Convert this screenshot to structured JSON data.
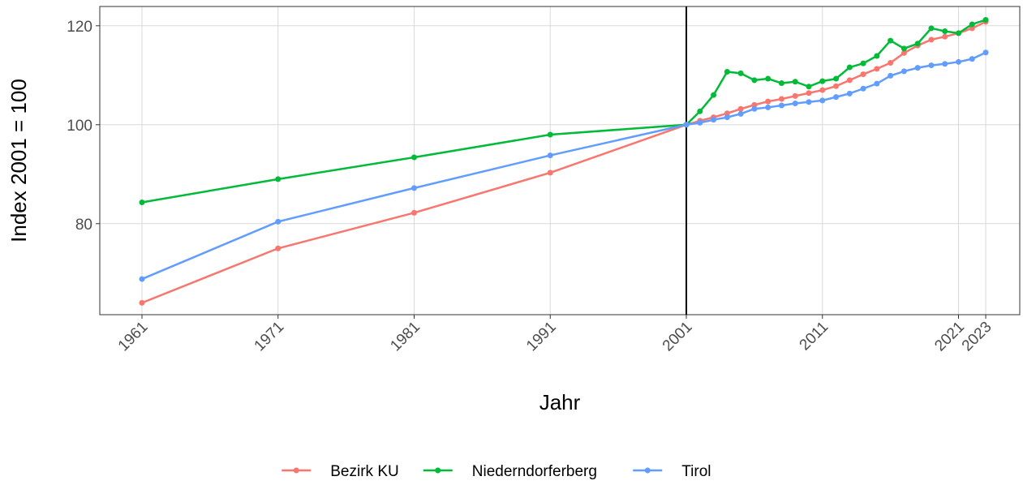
{
  "chart_data": {
    "type": "line",
    "x_label": "Jahr",
    "y_label": "Index 2001 = 100",
    "x": [
      1961,
      1971,
      1981,
      1991,
      2001,
      2002,
      2003,
      2004,
      2005,
      2006,
      2007,
      2008,
      2009,
      2010,
      2011,
      2012,
      2013,
      2014,
      2015,
      2016,
      2017,
      2018,
      2019,
      2020,
      2021,
      2022,
      2023
    ],
    "series": [
      {
        "name": "Bezirk KU",
        "color": "#F8766D",
        "values": [
          64,
          75,
          82.2,
          90.3,
          100,
          100.8,
          101.5,
          102.3,
          103.2,
          104,
          104.7,
          105.2,
          105.8,
          106.4,
          107,
          107.8,
          109,
          110.2,
          111.3,
          112.5,
          114.5,
          116,
          117.2,
          117.8,
          118.5,
          119.5,
          120.8
        ]
      },
      {
        "name": "Niederndorferberg",
        "color": "#00BA38",
        "values": [
          84.3,
          89,
          93.4,
          98,
          100,
          102.7,
          106,
          110.7,
          110.4,
          109,
          109.3,
          108.4,
          108.7,
          107.7,
          108.8,
          109.3,
          111.6,
          112.4,
          113.9,
          117,
          115.4,
          116.4,
          119.5,
          118.9,
          118.5,
          120.3,
          121.2
        ]
      },
      {
        "name": "Tirol",
        "color": "#619CFF",
        "values": [
          68.8,
          80.4,
          87.2,
          93.8,
          100,
          100.4,
          101,
          101.5,
          102.2,
          103.2,
          103.5,
          103.9,
          104.3,
          104.6,
          104.9,
          105.6,
          106.3,
          107.3,
          108.3,
          109.9,
          110.8,
          111.5,
          112,
          112.3,
          112.7,
          113.3,
          114.6
        ]
      }
    ],
    "vline": 2001,
    "xlim": [
      1957.9,
      2025.5
    ],
    "xticks": [
      1961,
      1971,
      1981,
      1991,
      2001,
      2011,
      2021,
      2023
    ],
    "ylim": [
      61.6,
      123.9
    ],
    "yticks": [
      80,
      100,
      120
    ],
    "grid": true,
    "legend": "bottom"
  }
}
